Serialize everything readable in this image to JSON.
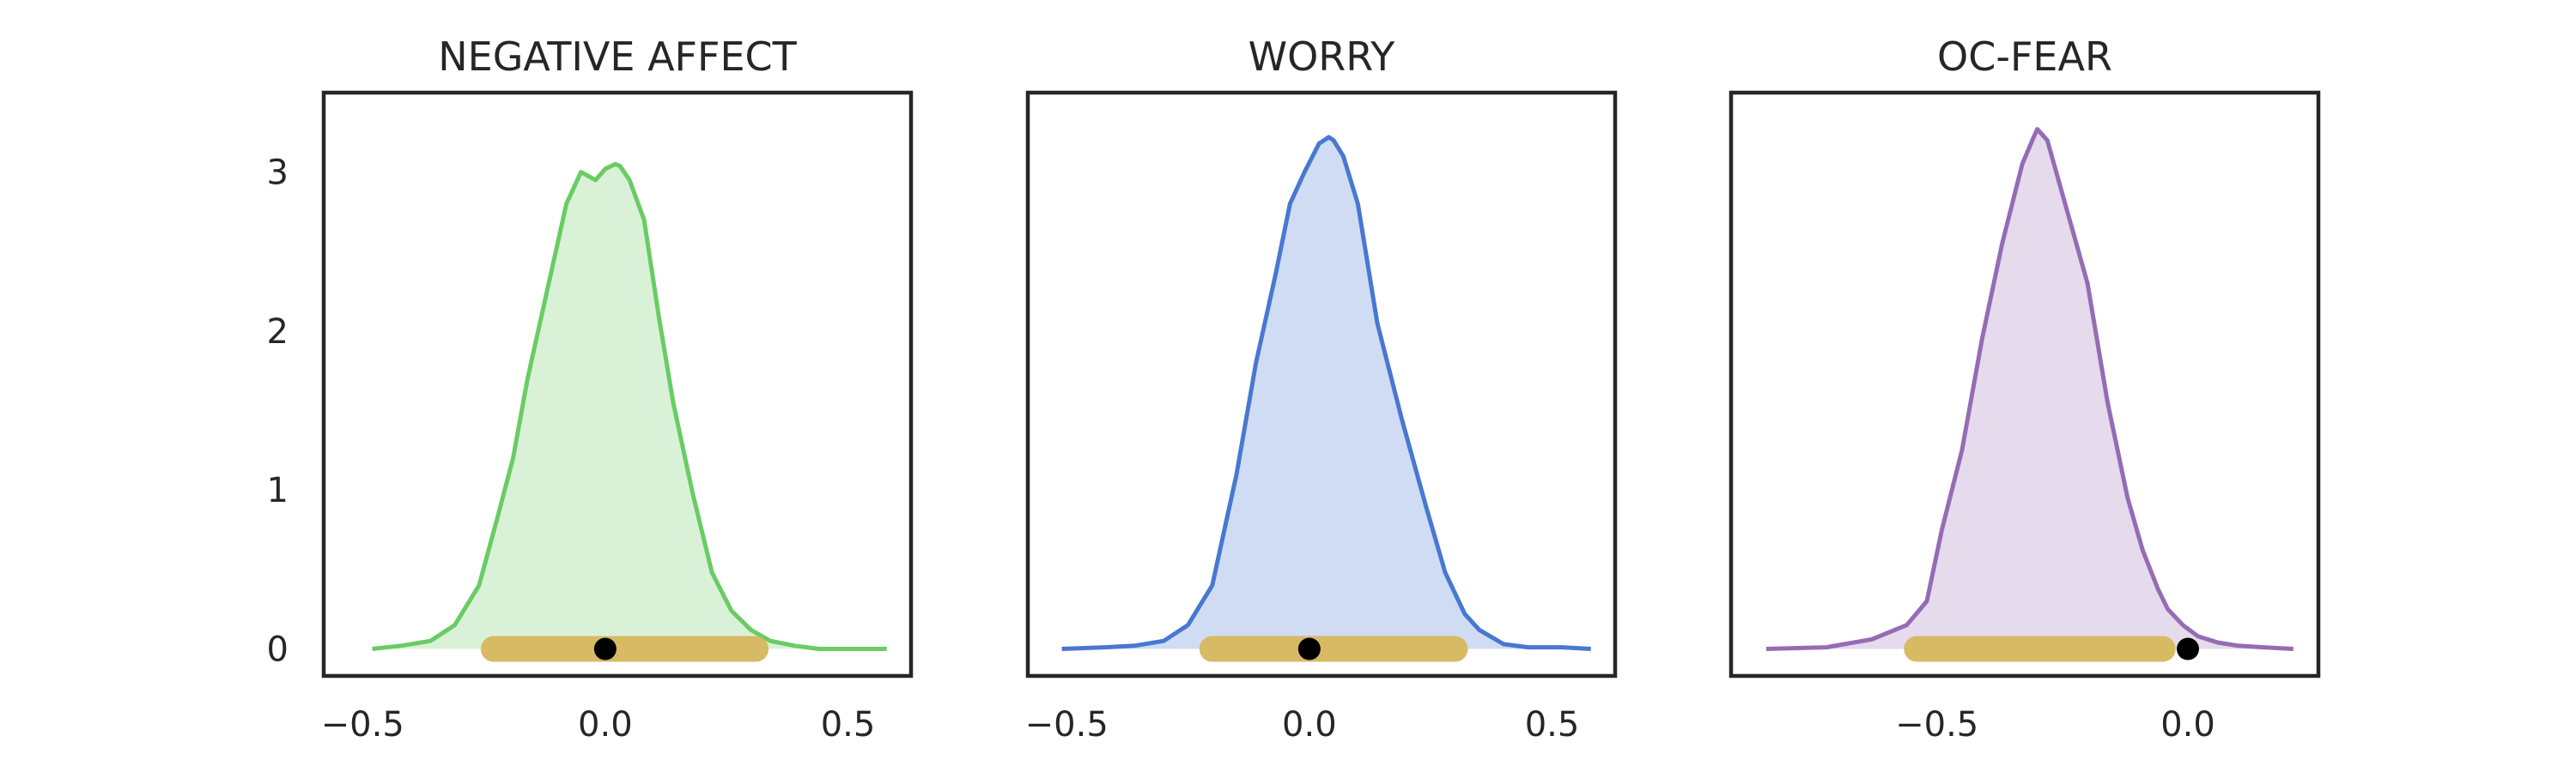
{
  "chart_data": [
    {
      "type": "area",
      "title": "NEGATIVE AFFECT",
      "color": "#6acc64",
      "fill": "#d9f2d7",
      "xlim": [
        -0.58,
        0.63
      ],
      "ylim": [
        -0.17,
        3.5
      ],
      "xticks": [
        -0.5,
        0.0,
        0.5
      ],
      "xtick_labels": [
        "−0.5",
        "0.0",
        "0.5"
      ],
      "yticks": [
        0,
        1,
        2,
        3
      ],
      "ytick_labels": [
        "0",
        "1",
        "2",
        "3"
      ],
      "density": {
        "x": [
          -0.48,
          -0.42,
          -0.36,
          -0.31,
          -0.26,
          -0.22,
          -0.19,
          -0.16,
          -0.12,
          -0.08,
          -0.05,
          -0.02,
          0.0,
          0.02,
          0.03,
          0.05,
          0.08,
          0.11,
          0.14,
          0.18,
          0.22,
          0.26,
          0.3,
          0.34,
          0.39,
          0.44,
          0.5,
          0.58
        ],
        "y": [
          0.0,
          0.02,
          0.05,
          0.15,
          0.4,
          0.85,
          1.2,
          1.7,
          2.25,
          2.8,
          3.0,
          2.95,
          3.02,
          3.05,
          3.04,
          2.95,
          2.7,
          2.1,
          1.55,
          0.98,
          0.48,
          0.24,
          0.12,
          0.05,
          0.02,
          0.0,
          0.0,
          0.0
        ]
      },
      "interval": [
        -0.23,
        0.31
      ],
      "point": 0.0
    },
    {
      "type": "area",
      "title": "WORRY",
      "color": "#4878d0",
      "fill": "#d0dcf3",
      "xlim": [
        -0.58,
        0.63
      ],
      "ylim": [
        -0.17,
        3.5
      ],
      "xticks": [
        -0.5,
        0.0,
        0.5
      ],
      "xtick_labels": [
        "−0.5",
        "0.0",
        "0.5"
      ],
      "yticks": [
        0,
        1,
        2,
        3
      ],
      "ytick_labels": [
        "0",
        "1",
        "2",
        "3"
      ],
      "density": {
        "x": [
          -0.51,
          -0.42,
          -0.36,
          -0.3,
          -0.25,
          -0.2,
          -0.15,
          -0.11,
          -0.07,
          -0.04,
          -0.01,
          0.02,
          0.04,
          0.05,
          0.07,
          0.1,
          0.14,
          0.19,
          0.24,
          0.28,
          0.32,
          0.35,
          0.4,
          0.45,
          0.52,
          0.58
        ],
        "y": [
          0.0,
          0.01,
          0.02,
          0.05,
          0.15,
          0.4,
          1.1,
          1.8,
          2.35,
          2.8,
          3.0,
          3.18,
          3.22,
          3.2,
          3.1,
          2.8,
          2.05,
          1.45,
          0.9,
          0.48,
          0.22,
          0.12,
          0.03,
          0.01,
          0.01,
          0.0
        ]
      },
      "interval": [
        -0.2,
        0.3
      ],
      "point": 0.0
    },
    {
      "type": "area",
      "title": "OC-FEAR",
      "color": "#956cb4",
      "fill": "#e6daed",
      "xlim": [
        -0.91,
        0.26
      ],
      "ylim": [
        -0.17,
        3.5
      ],
      "xticks": [
        -0.5,
        0.0
      ],
      "xtick_labels": [
        "−0.5",
        "0.0"
      ],
      "yticks": [
        0,
        1,
        2,
        3
      ],
      "ytick_labels": [
        "0",
        "1",
        "2",
        "3"
      ],
      "density": {
        "x": [
          -0.84,
          -0.72,
          -0.63,
          -0.56,
          -0.52,
          -0.49,
          -0.45,
          -0.41,
          -0.37,
          -0.33,
          -0.31,
          -0.3,
          -0.28,
          -0.24,
          -0.2,
          -0.16,
          -0.12,
          -0.09,
          -0.06,
          -0.04,
          -0.01,
          0.02,
          0.06,
          0.1,
          0.15,
          0.21
        ],
        "y": [
          0.0,
          0.01,
          0.06,
          0.15,
          0.3,
          0.75,
          1.25,
          1.95,
          2.55,
          3.05,
          3.2,
          3.27,
          3.2,
          2.75,
          2.3,
          1.55,
          0.95,
          0.62,
          0.38,
          0.25,
          0.15,
          0.08,
          0.04,
          0.02,
          0.01,
          0.0
        ]
      },
      "interval": [
        -0.54,
        -0.05
      ],
      "point": 0.0
    }
  ],
  "style": {
    "interval_color": "#d8b964",
    "point_color": "#000000"
  }
}
